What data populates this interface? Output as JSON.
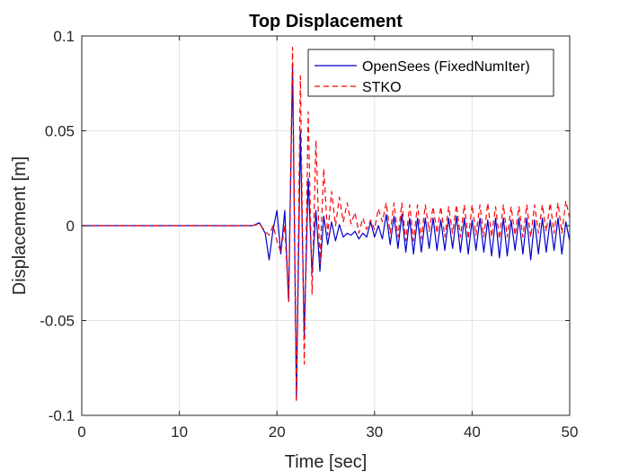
{
  "chart_data": {
    "type": "line",
    "title": "Top Displacement",
    "xlabel": "Time [sec]",
    "ylabel": "Displacement [m]",
    "xlim": [
      0,
      50
    ],
    "ylim": [
      -0.1,
      0.1
    ],
    "x_ticks": [
      0,
      10,
      20,
      30,
      40,
      50
    ],
    "x_tick_labels": [
      "0",
      "10",
      "20",
      "30",
      "40",
      "50"
    ],
    "y_ticks": [
      -0.1,
      -0.05,
      0,
      0.05,
      0.1
    ],
    "y_tick_labels": [
      "-0.1",
      "-0.05",
      "0",
      "0.05",
      "0.1"
    ],
    "grid": true,
    "legend_position": "top-right",
    "series": [
      {
        "name": "OpenSees (FixedNumIter)",
        "color": "#0000cc",
        "style": "solid",
        "x": [
          0,
          17.5,
          18.2,
          18.8,
          19.2,
          19.6,
          20.0,
          20.4,
          20.8,
          21.2,
          21.6,
          22.0,
          22.4,
          22.8,
          23.2,
          23.6,
          24.0,
          24.4,
          24.8,
          25.2,
          25.6,
          26.0,
          26.4,
          26.8,
          27.2,
          27.6,
          28.0,
          28.4,
          28.8,
          29.2,
          29.6,
          30.0,
          30.4,
          30.8,
          31.2,
          31.6,
          32.0,
          32.4,
          32.8,
          33.2,
          33.6,
          34.0,
          34.4,
          34.8,
          35.2,
          35.6,
          36.0,
          36.4,
          36.8,
          37.2,
          37.6,
          38.0,
          38.4,
          38.8,
          39.2,
          39.6,
          40.0,
          40.4,
          40.8,
          41.2,
          41.6,
          42.0,
          42.4,
          42.8,
          43.2,
          43.6,
          44.0,
          44.4,
          44.8,
          45.2,
          45.6,
          46.0,
          46.4,
          46.8,
          47.2,
          47.6,
          48.0,
          48.4,
          48.8,
          49.2,
          49.6,
          50.0
        ],
        "y": [
          0,
          0,
          0.0015,
          -0.004,
          -0.018,
          -0.002,
          0.008,
          -0.015,
          0.008,
          -0.04,
          0.085,
          -0.092,
          0.05,
          -0.058,
          0.025,
          -0.025,
          0.008,
          -0.024,
          0.005,
          -0.01,
          0.002,
          -0.008,
          0.0005,
          -0.006,
          -0.004,
          -0.005,
          -0.003,
          -0.007,
          -0.004,
          -0.006,
          0.002,
          -0.006,
          0.0,
          -0.007,
          0.006,
          -0.01,
          0.005,
          -0.012,
          0.006,
          -0.014,
          0.004,
          -0.015,
          0.004,
          -0.014,
          0.004,
          -0.012,
          0.004,
          -0.013,
          0.003,
          -0.013,
          0.004,
          -0.012,
          0.005,
          -0.014,
          0.004,
          -0.015,
          0.003,
          -0.013,
          0.004,
          -0.014,
          0.003,
          -0.016,
          0.004,
          -0.017,
          0.004,
          -0.016,
          0.003,
          -0.013,
          0.004,
          -0.015,
          0.004,
          -0.018,
          0.003,
          -0.015,
          0.004,
          -0.014,
          0.003,
          -0.013,
          0.004,
          -0.015,
          0.002,
          -0.008
        ]
      },
      {
        "name": "STKO",
        "color": "#ff0000",
        "style": "dashed",
        "x": [
          0,
          17.5,
          18.2,
          18.8,
          19.2,
          19.6,
          20.0,
          20.4,
          20.8,
          21.2,
          21.6,
          22.0,
          22.4,
          22.8,
          23.2,
          23.6,
          24.0,
          24.4,
          24.8,
          25.2,
          25.6,
          26.0,
          26.4,
          26.8,
          27.2,
          27.6,
          28.0,
          28.4,
          28.8,
          29.2,
          29.6,
          30.0,
          30.4,
          30.8,
          31.2,
          31.6,
          32.0,
          32.4,
          32.8,
          33.2,
          33.6,
          34.0,
          34.4,
          34.8,
          35.2,
          35.6,
          36.0,
          36.4,
          36.8,
          37.2,
          37.6,
          38.0,
          38.4,
          38.8,
          39.2,
          39.6,
          40.0,
          40.4,
          40.8,
          41.2,
          41.6,
          42.0,
          42.4,
          42.8,
          43.2,
          43.6,
          44.0,
          44.4,
          44.8,
          45.2,
          45.6,
          46.0,
          46.4,
          46.8,
          47.2,
          47.6,
          48.0,
          48.4,
          48.8,
          49.2,
          49.6,
          50.0
        ],
        "y": [
          0,
          0,
          0.001,
          -0.003,
          -0.005,
          0.0,
          -0.008,
          -0.014,
          0.0,
          -0.04,
          0.094,
          -0.093,
          0.079,
          -0.073,
          0.06,
          -0.036,
          0.045,
          -0.02,
          0.03,
          -0.005,
          0.018,
          0.0,
          0.015,
          0.002,
          0.012,
          0.001,
          0.007,
          -0.004,
          0.004,
          -0.002,
          0.003,
          -0.002,
          0.009,
          0.002,
          0.012,
          -0.004,
          0.012,
          -0.006,
          0.012,
          -0.008,
          0.011,
          -0.008,
          0.011,
          -0.007,
          0.011,
          -0.003,
          0.01,
          -0.004,
          0.01,
          -0.006,
          0.01,
          -0.004,
          0.011,
          -0.006,
          0.011,
          -0.007,
          0.011,
          -0.005,
          0.011,
          -0.006,
          0.012,
          -0.006,
          0.01,
          -0.007,
          0.011,
          -0.006,
          0.01,
          -0.005,
          0.01,
          -0.006,
          0.011,
          -0.006,
          0.011,
          -0.004,
          0.011,
          -0.003,
          0.012,
          -0.004,
          0.012,
          -0.004,
          0.013,
          0.004
        ]
      }
    ]
  }
}
